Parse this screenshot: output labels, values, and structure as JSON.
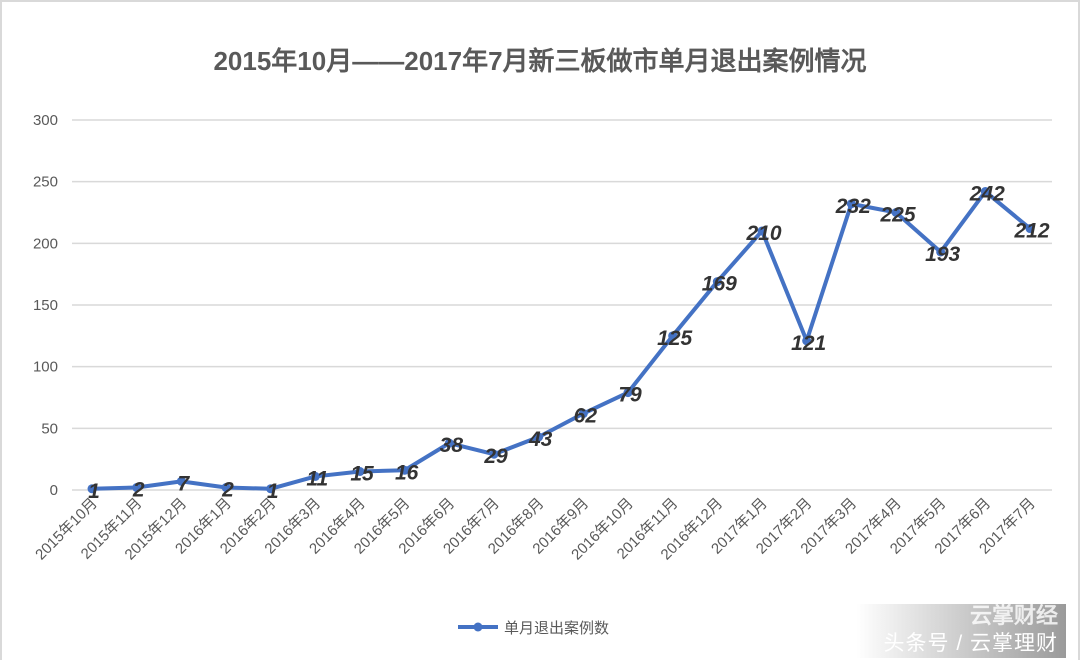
{
  "chart_data": {
    "type": "line",
    "title": "2015年10月——2017年7月新三板做市单月退出案例情况",
    "categories": [
      "2015年10月",
      "2015年11月",
      "2015年12月",
      "2016年1月",
      "2016年2月",
      "2016年3月",
      "2016年4月",
      "2016年5月",
      "2016年6月",
      "2016年7月",
      "2016年8月",
      "2016年9月",
      "2016年10月",
      "2016年11月",
      "2016年12月",
      "2017年1月",
      "2017年2月",
      "2017年3月",
      "2017年4月",
      "2017年5月",
      "2017年6月",
      "2017年7月"
    ],
    "series": [
      {
        "name": "单月退出案例数",
        "values": [
          1,
          2,
          7,
          2,
          1,
          11,
          15,
          16,
          38,
          29,
          43,
          62,
          79,
          125,
          169,
          210,
          121,
          232,
          225,
          193,
          242,
          212
        ],
        "color": "#4472c4"
      }
    ],
    "ylim": [
      0,
      300
    ],
    "yticks": [
      0,
      50,
      100,
      150,
      200,
      250,
      300
    ],
    "grid": true,
    "legend": "bottom",
    "data_labels": true
  },
  "watermark": {
    "top": "云掌财经",
    "bottom": "头条号 / 云掌理财"
  }
}
